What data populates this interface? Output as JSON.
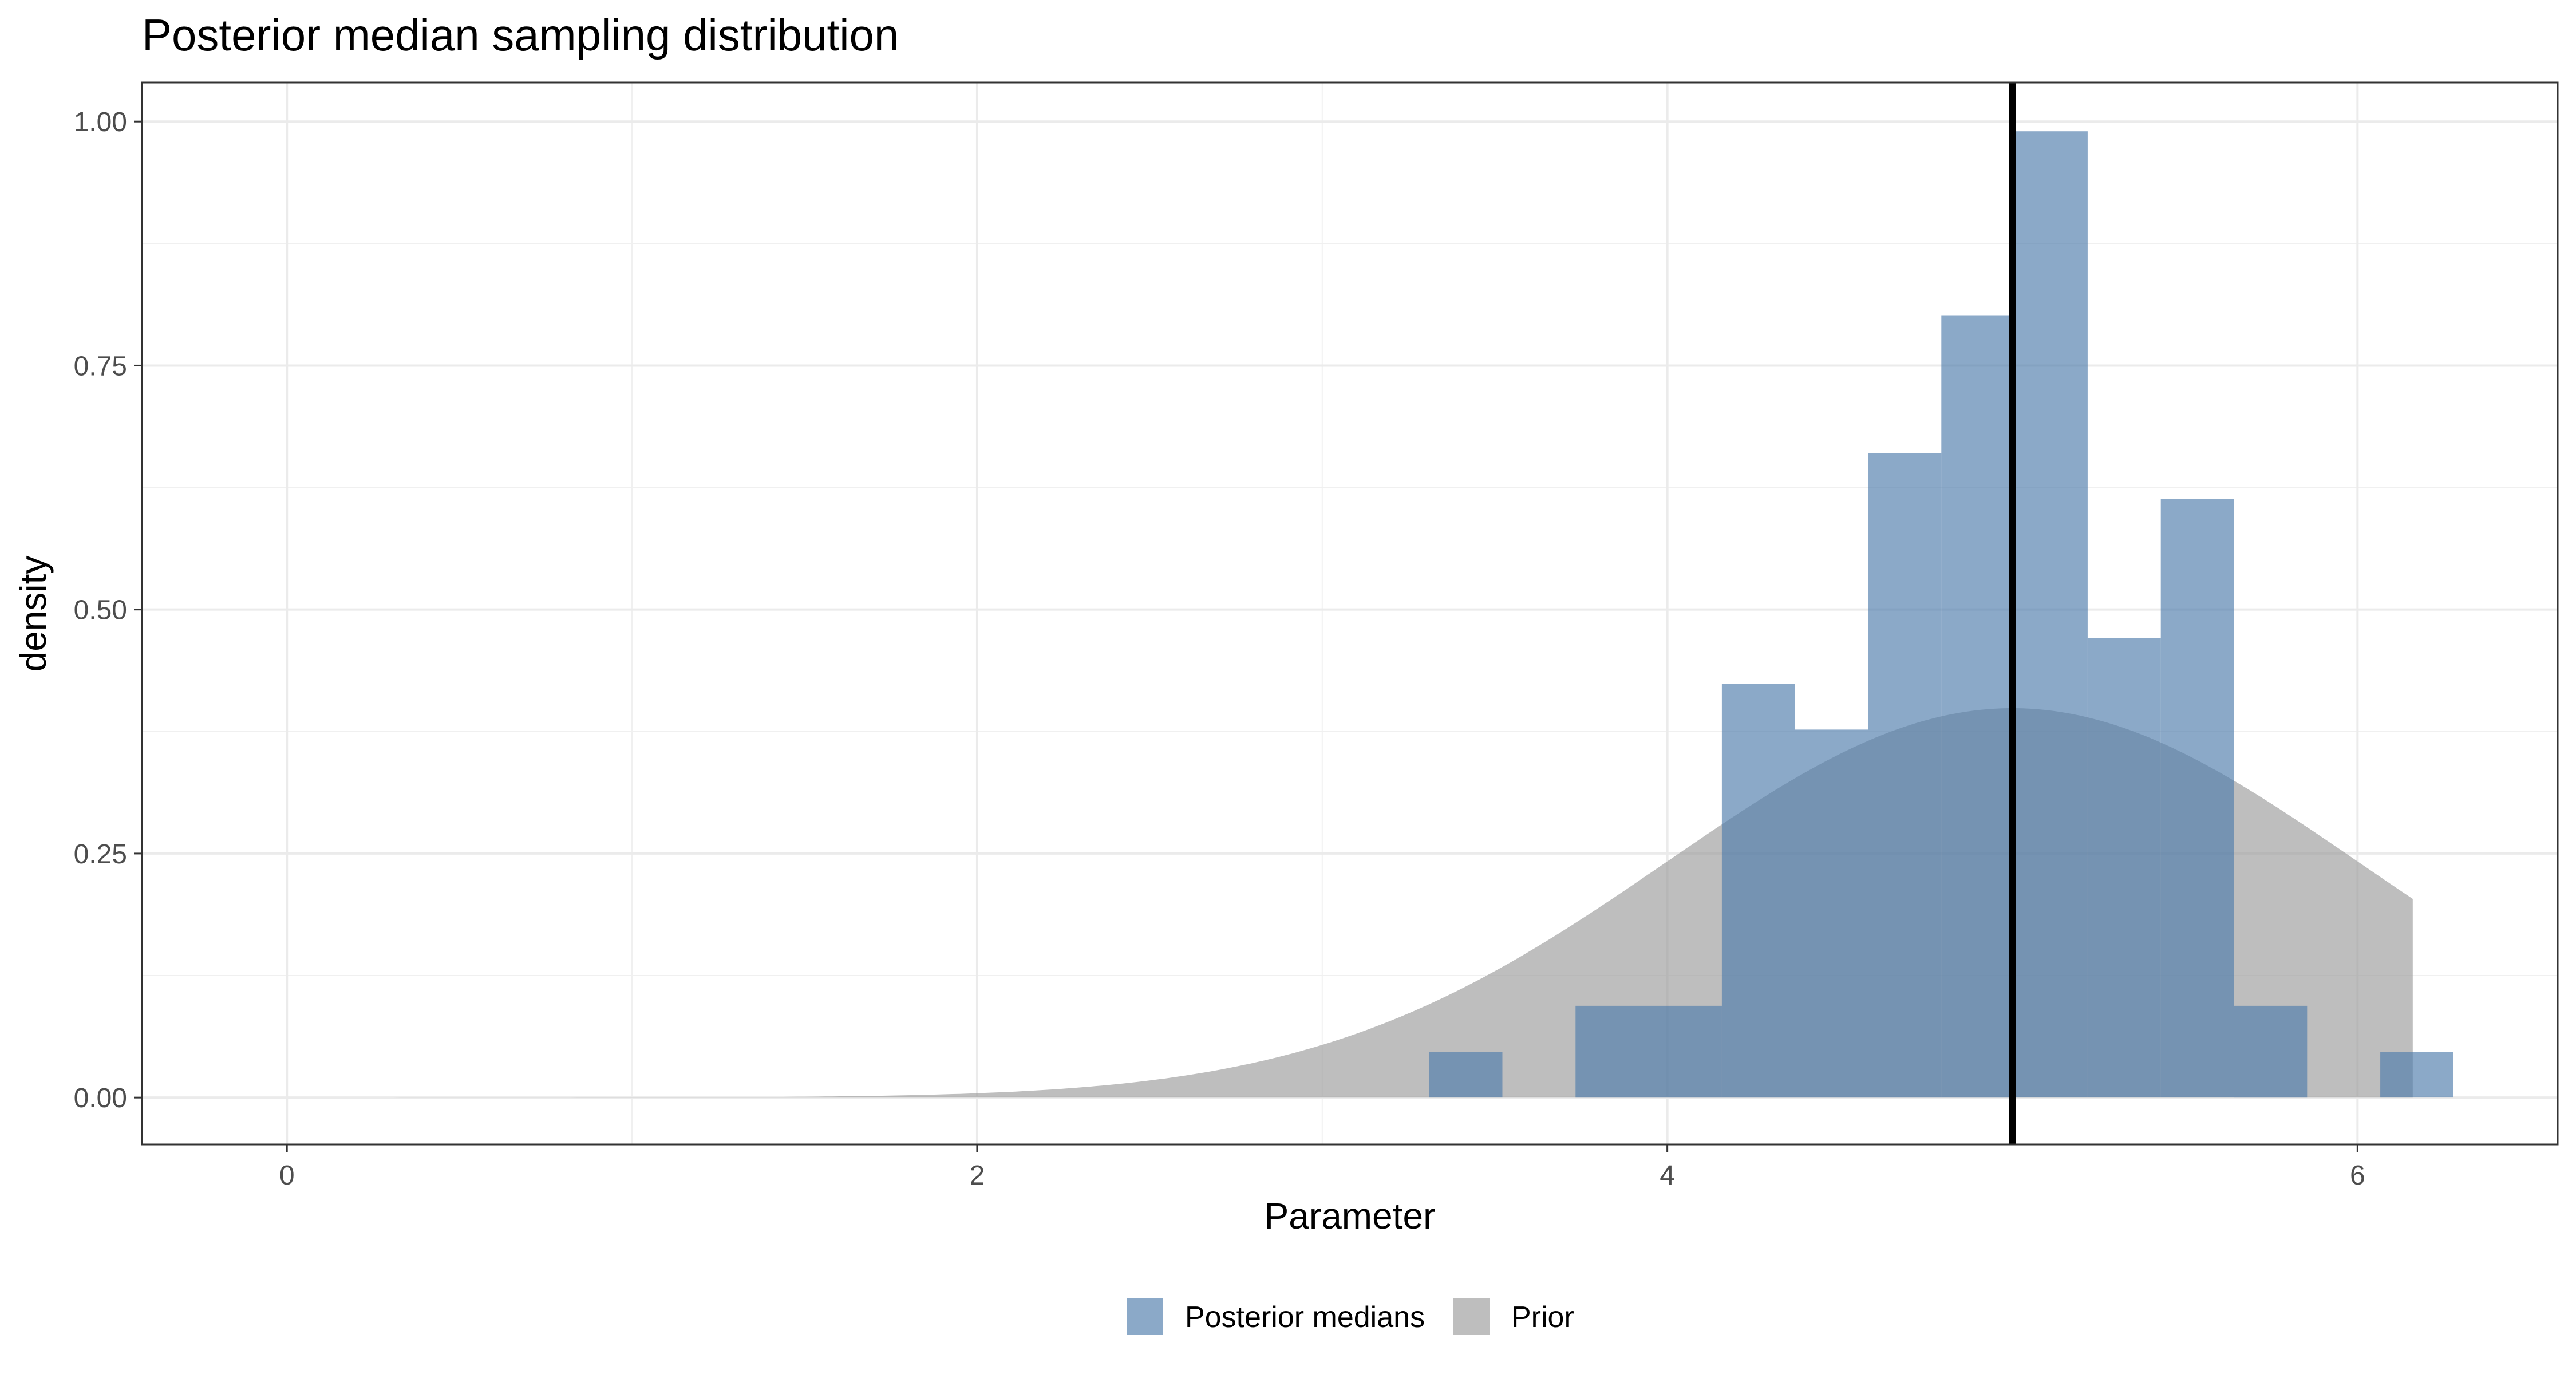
{
  "chart_data": {
    "type": "histogram",
    "title": "Posterior median sampling distribution",
    "xlabel": "Parameter",
    "ylabel": "density",
    "xlim": [
      -0.42,
      6.58
    ],
    "ylim": [
      -0.048,
      1.04
    ],
    "x_ticks": [
      0,
      2,
      4,
      6
    ],
    "x_tick_labels": [
      "0",
      "2",
      "4",
      "6"
    ],
    "y_ticks": [
      0,
      0.25,
      0.5,
      0.75,
      1.0
    ],
    "y_tick_labels": [
      "0.00",
      "0.25",
      "0.50",
      "0.75",
      "1.00"
    ],
    "grid": true,
    "legend_position": "bottom",
    "reference_line": {
      "x": 5.0,
      "color": "#000000"
    },
    "series": [
      {
        "name": "Posterior medians",
        "kind": "histogram",
        "color": "#4f7dab",
        "opacity": 0.66,
        "bin_width": 0.212,
        "bins": [
          {
            "x0": 3.31,
            "x1": 3.522,
            "density": 0.047
          },
          {
            "x0": 3.522,
            "x1": 3.734,
            "density": 0.0
          },
          {
            "x0": 3.734,
            "x1": 3.946,
            "density": 0.094
          },
          {
            "x0": 3.946,
            "x1": 4.158,
            "density": 0.094
          },
          {
            "x0": 4.158,
            "x1": 4.37,
            "density": 0.424
          },
          {
            "x0": 4.37,
            "x1": 4.582,
            "density": 0.377
          },
          {
            "x0": 4.582,
            "x1": 4.794,
            "density": 0.66
          },
          {
            "x0": 4.794,
            "x1": 5.006,
            "density": 0.801
          },
          {
            "x0": 5.006,
            "x1": 5.218,
            "density": 0.99
          },
          {
            "x0": 5.218,
            "x1": 5.43,
            "density": 0.471
          },
          {
            "x0": 5.43,
            "x1": 5.642,
            "density": 0.613
          },
          {
            "x0": 5.642,
            "x1": 5.854,
            "density": 0.094
          },
          {
            "x0": 5.854,
            "x1": 6.066,
            "density": 0.0
          },
          {
            "x0": 6.066,
            "x1": 6.278,
            "density": 0.047
          }
        ]
      },
      {
        "name": "Prior",
        "kind": "area",
        "color": "#9c9c9c",
        "opacity": 0.66,
        "distribution": "normal",
        "mean": 5,
        "sd": 1,
        "x_range": [
          0,
          6.16
        ]
      }
    ]
  }
}
